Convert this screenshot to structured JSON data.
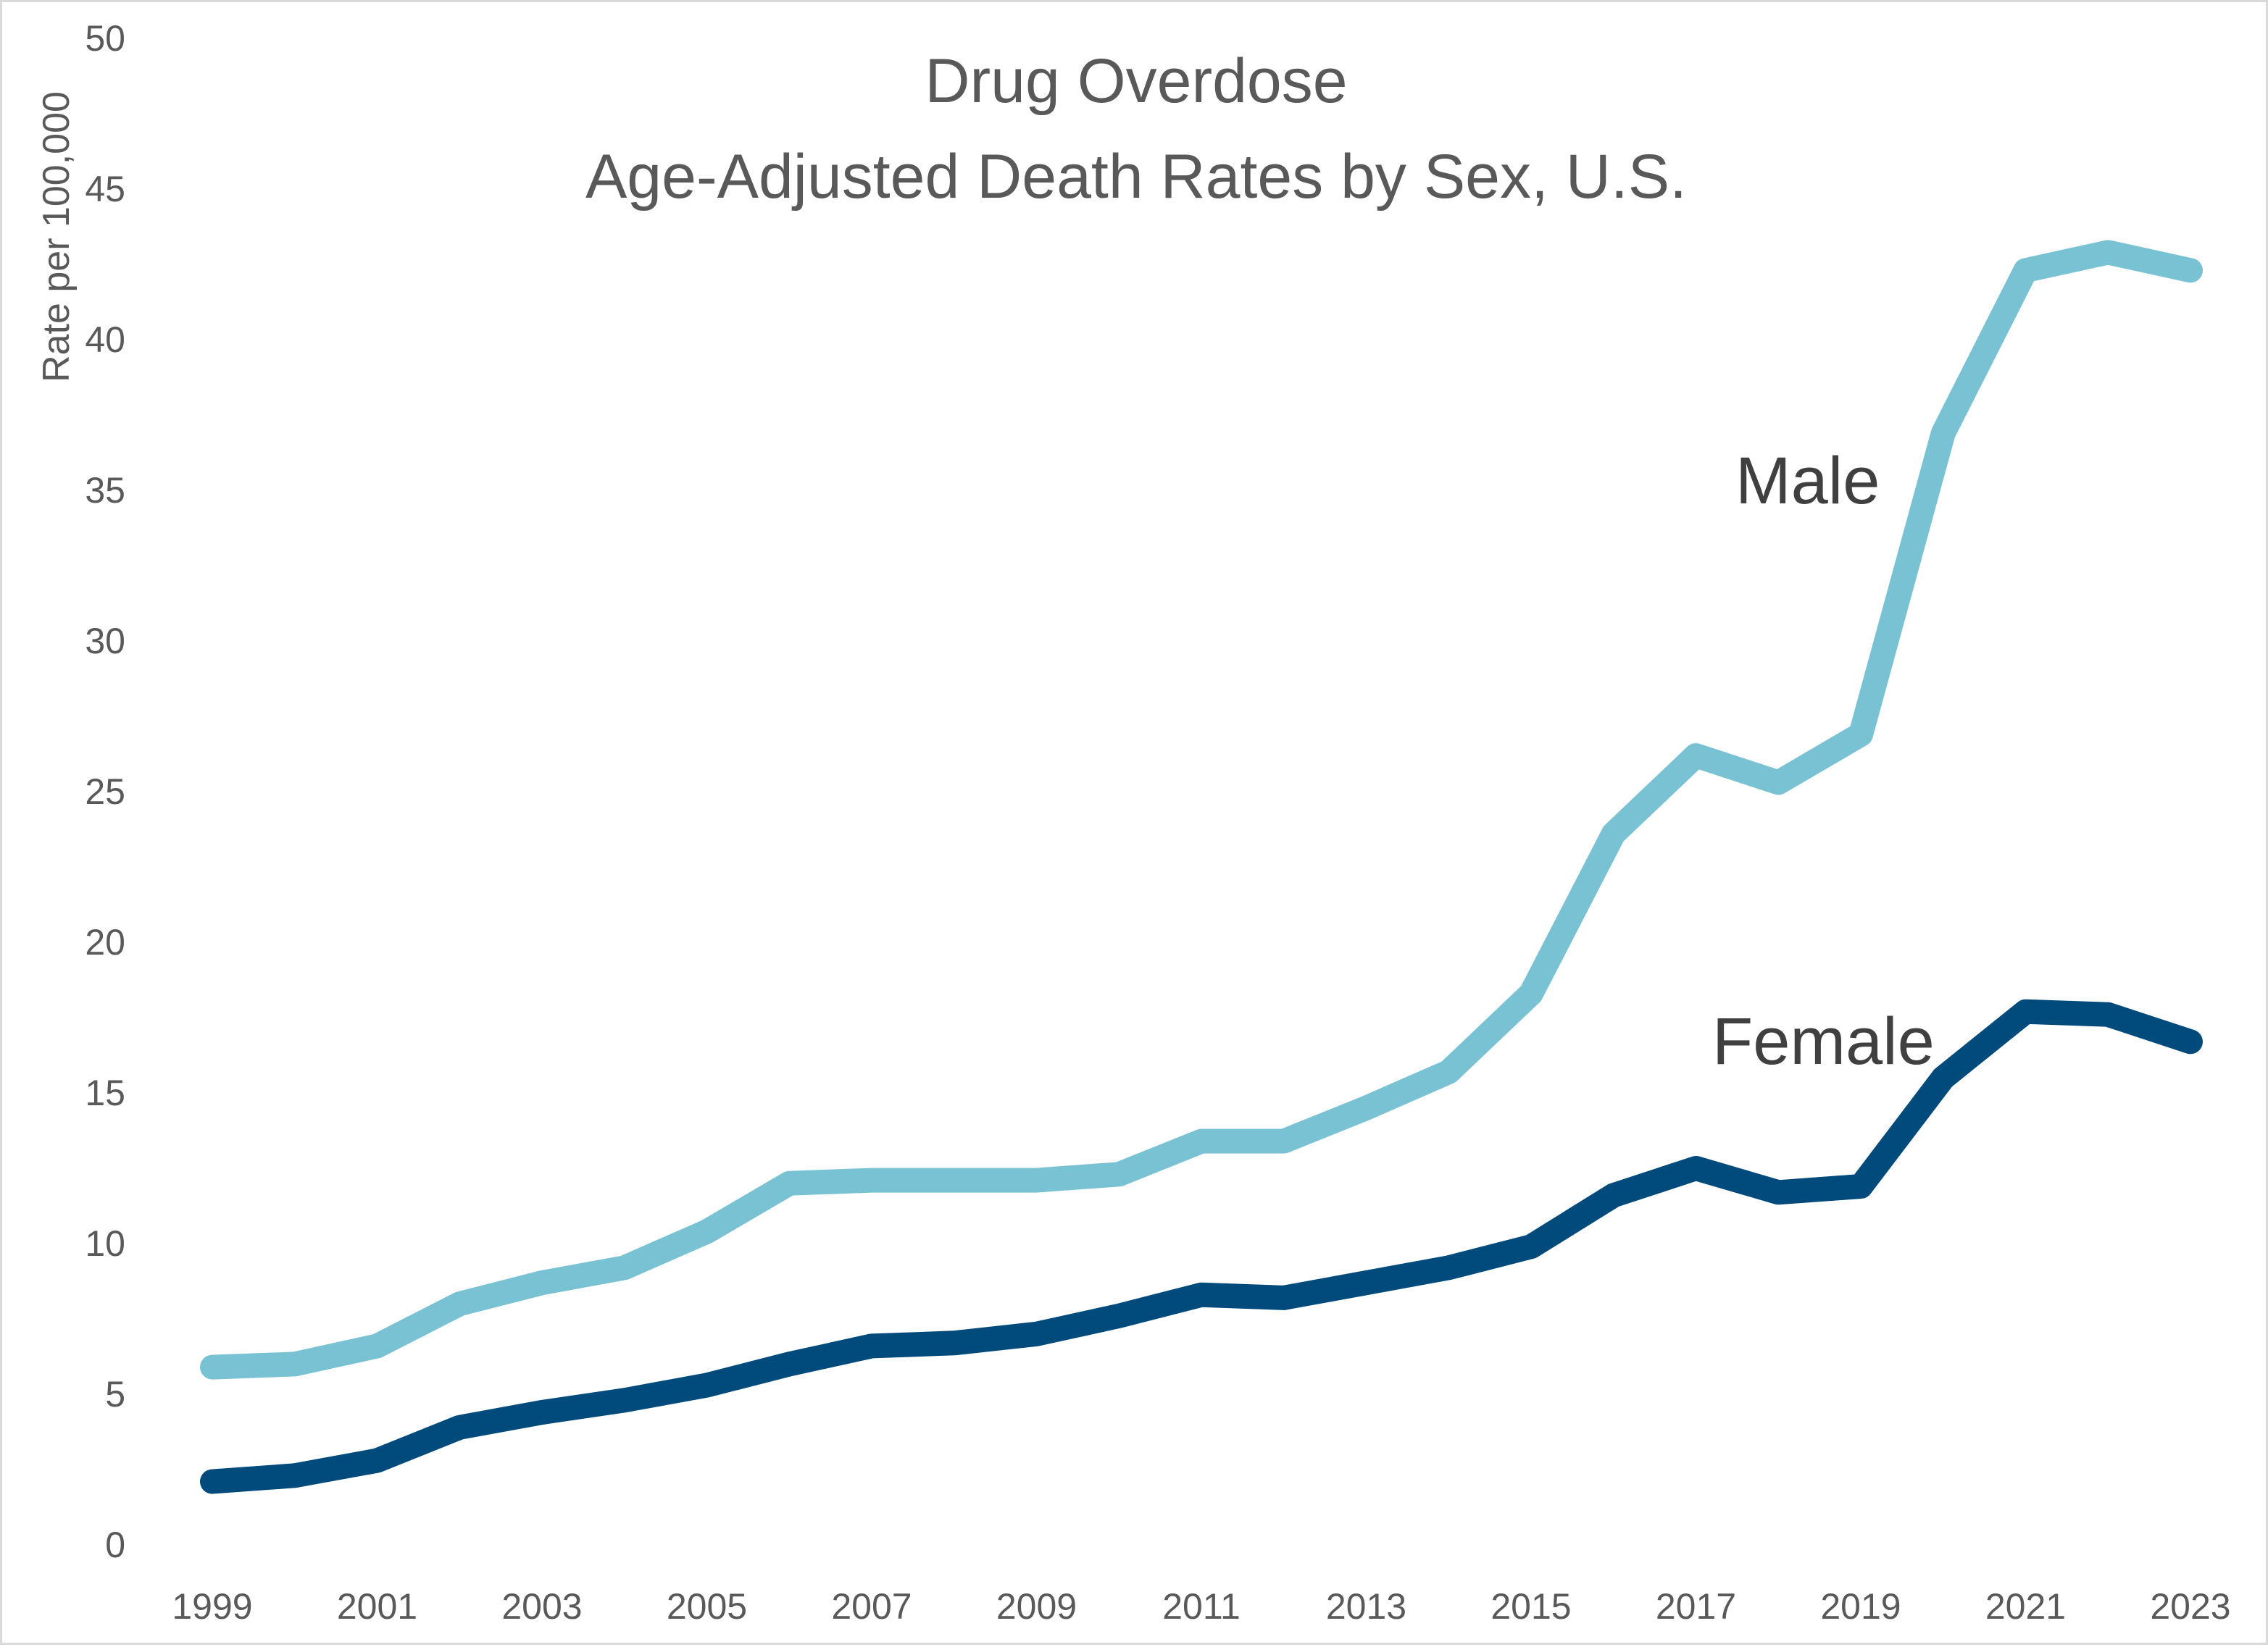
{
  "chart_data": {
    "type": "line",
    "title": "Drug Overdose",
    "subtitle": "Age-Adjusted Death Rates by Sex, U.S.",
    "xlabel": "",
    "ylabel": "Rate per 100,000",
    "ylim": [
      0,
      50
    ],
    "yticks": [
      0,
      5,
      10,
      15,
      20,
      25,
      30,
      35,
      40,
      45,
      50
    ],
    "x": [
      1999,
      2000,
      2001,
      2002,
      2003,
      2004,
      2005,
      2006,
      2007,
      2008,
      2009,
      2010,
      2011,
      2012,
      2013,
      2014,
      2015,
      2016,
      2017,
      2018,
      2019,
      2020,
      2021,
      2022,
      2023
    ],
    "xticks": [
      "1999",
      "2001",
      "2003",
      "2005",
      "2007",
      "2009",
      "2011",
      "2013",
      "2015",
      "2017",
      "2019",
      "2021",
      "2023"
    ],
    "grid": false,
    "legend": "none",
    "series": [
      {
        "name": "Male",
        "color": "#78c2d4",
        "values": [
          5.9,
          6.0,
          6.6,
          8.0,
          8.7,
          9.2,
          10.4,
          12.0,
          12.1,
          12.1,
          12.1,
          12.3,
          13.4,
          13.4,
          14.5,
          15.7,
          18.3,
          23.6,
          26.2,
          25.3,
          26.9,
          36.9,
          42.3,
          42.9,
          42.3
        ],
        "label": "Male"
      },
      {
        "name": "Female",
        "color": "#004b7b",
        "values": [
          2.1,
          2.3,
          2.8,
          3.9,
          4.4,
          4.8,
          5.3,
          6.0,
          6.6,
          6.7,
          7.0,
          7.6,
          8.3,
          8.2,
          8.7,
          9.2,
          9.9,
          11.6,
          12.5,
          11.7,
          11.9,
          15.5,
          17.7,
          17.6,
          16.7
        ],
        "label": "Female"
      }
    ]
  }
}
